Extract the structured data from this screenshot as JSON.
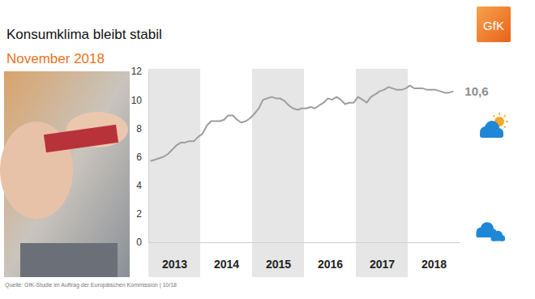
{
  "chart_data": {
    "type": "line",
    "title": "Konsumklima bleibt stabil",
    "subtitle": "November 2018",
    "source": "Quelle: GfK-Studie im Auftrag der Europäischen Kommission | 10/18",
    "logo": "GfK",
    "annotation": "10,6",
    "color": "#9e9e9e",
    "x": [
      2013.04,
      2013.13,
      2013.21,
      2013.29,
      2013.38,
      2013.46,
      2013.54,
      2013.63,
      2013.71,
      2013.79,
      2013.88,
      2013.96,
      2014.04,
      2014.13,
      2014.21,
      2014.29,
      2014.38,
      2014.46,
      2014.54,
      2014.63,
      2014.71,
      2014.79,
      2014.88,
      2014.96,
      2015.04,
      2015.13,
      2015.21,
      2015.29,
      2015.38,
      2015.46,
      2015.54,
      2015.63,
      2015.71,
      2015.79,
      2015.88,
      2015.96,
      2016.04,
      2016.13,
      2016.21,
      2016.29,
      2016.38,
      2016.46,
      2016.54,
      2016.63,
      2016.71,
      2016.79,
      2016.88,
      2016.96,
      2017.04,
      2017.13,
      2017.21,
      2017.29,
      2017.38,
      2017.46,
      2017.54,
      2017.63,
      2017.71,
      2017.79,
      2017.88,
      2017.96,
      2018.04,
      2018.13,
      2018.21,
      2018.29,
      2018.38,
      2018.46,
      2018.54,
      2018.63,
      2018.71,
      2018.79,
      2018.88
    ],
    "values": [
      5.7,
      5.8,
      5.9,
      6.0,
      6.2,
      6.5,
      6.8,
      7.0,
      7.0,
      7.1,
      7.1,
      7.4,
      7.6,
      8.2,
      8.5,
      8.5,
      8.5,
      8.6,
      8.9,
      8.9,
      8.6,
      8.4,
      8.5,
      8.7,
      9.0,
      9.4,
      10.0,
      10.1,
      10.2,
      10.1,
      10.1,
      9.9,
      9.6,
      9.4,
      9.3,
      9.4,
      9.4,
      9.5,
      9.4,
      9.6,
      9.8,
      10.1,
      10.0,
      10.2,
      10.0,
      9.7,
      9.8,
      9.8,
      10.2,
      10.0,
      9.8,
      10.2,
      10.4,
      10.6,
      10.7,
      10.9,
      10.8,
      10.7,
      10.7,
      10.8,
      11.0,
      10.8,
      10.8,
      10.8,
      10.7,
      10.7,
      10.7,
      10.6,
      10.5,
      10.5,
      10.6
    ],
    "xlim": [
      2013,
      2019
    ],
    "xticks": [
      {
        "value": 2013.5,
        "label": "2013"
      },
      {
        "value": 2014.5,
        "label": "2014"
      },
      {
        "value": 2015.5,
        "label": "2015"
      },
      {
        "value": 2016.5,
        "label": "2016"
      },
      {
        "value": 2017.5,
        "label": "2017"
      },
      {
        "value": 2018.5,
        "label": "2018"
      }
    ],
    "ylim": [
      0,
      12
    ],
    "yticks": [
      0,
      2,
      4,
      6,
      8,
      10,
      12
    ]
  }
}
